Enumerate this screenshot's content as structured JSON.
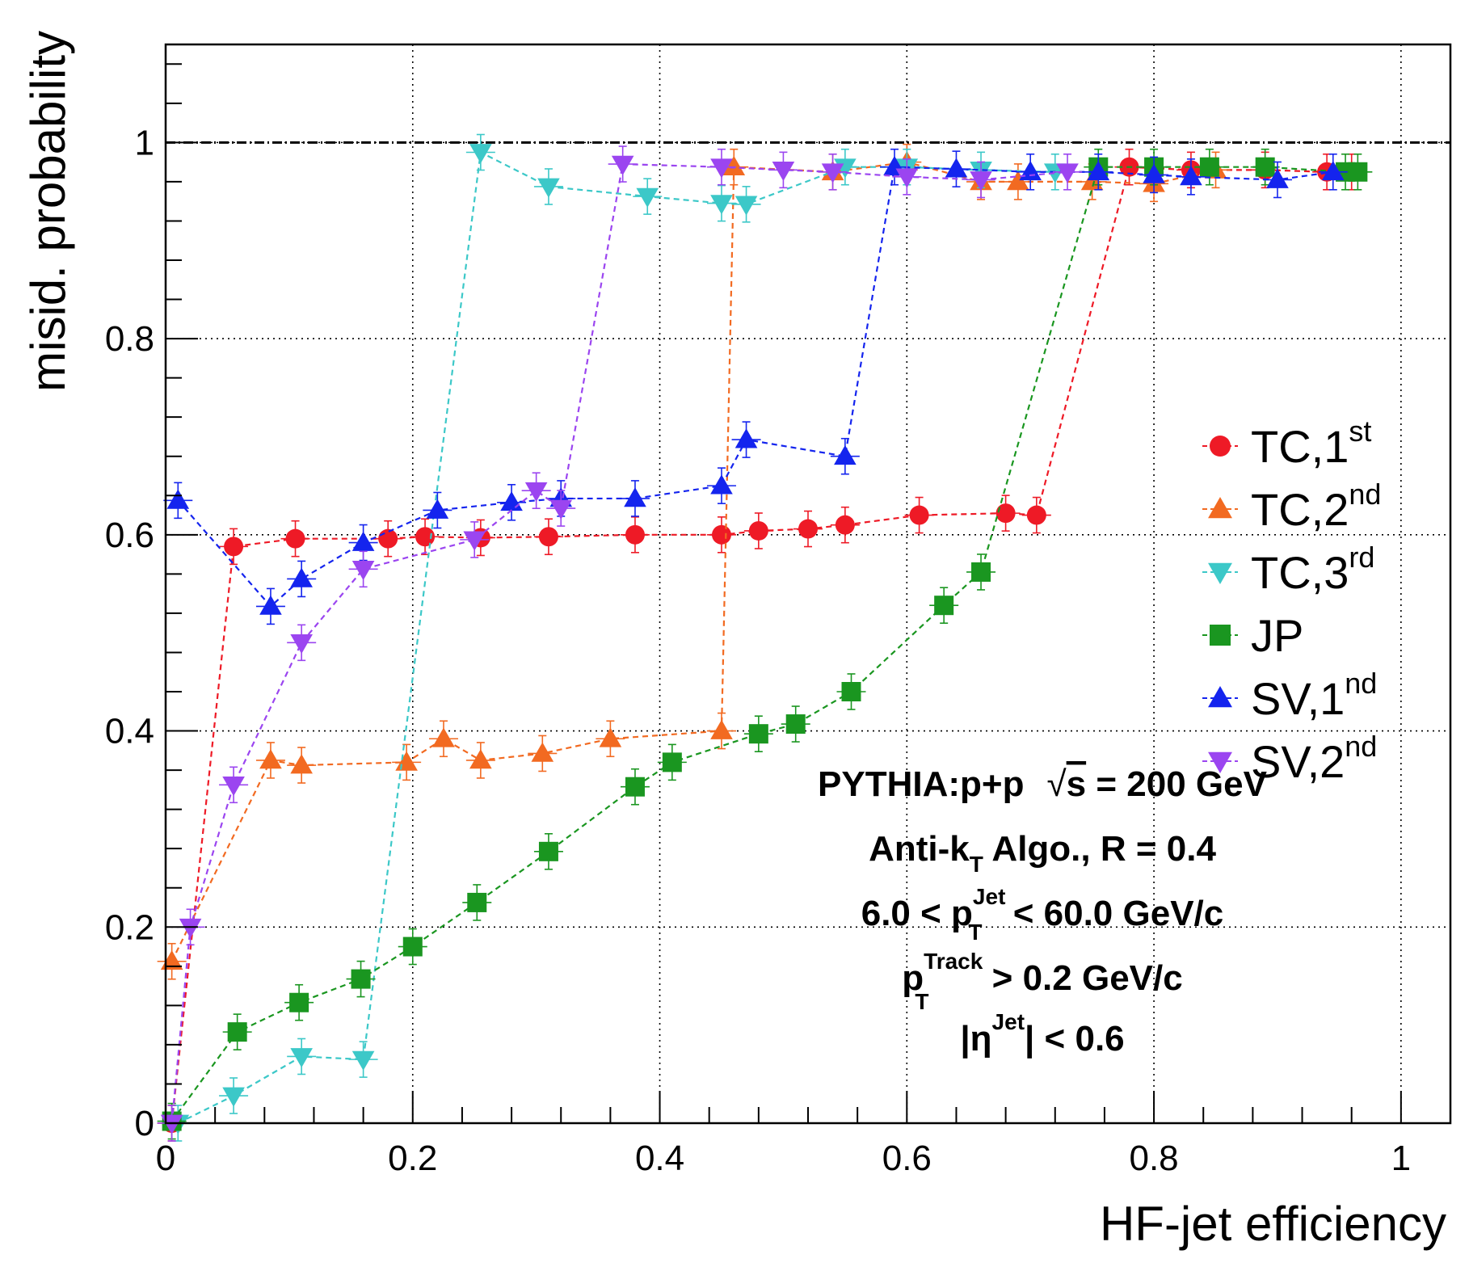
{
  "chart_data": {
    "type": "scatter",
    "xlabel": "HF-jet efficiency",
    "ylabel": "misid. probability",
    "xlim": [
      0,
      1.04
    ],
    "ylim": [
      0,
      1.1
    ],
    "grid": true,
    "xticks": [
      {
        "v": 0,
        "t": "0"
      },
      {
        "v": 0.2,
        "t": "0.2"
      },
      {
        "v": 0.4,
        "t": "0.4"
      },
      {
        "v": 0.6,
        "t": "0.6"
      },
      {
        "v": 0.8,
        "t": "0.8"
      },
      {
        "v": 1,
        "t": "1"
      }
    ],
    "yticks": [
      {
        "v": 0,
        "t": "0"
      },
      {
        "v": 0.2,
        "t": "0.2"
      },
      {
        "v": 0.4,
        "t": "0.4"
      },
      {
        "v": 0.6,
        "t": "0.6"
      },
      {
        "v": 0.8,
        "t": "0.8"
      },
      {
        "v": 1,
        "t": "1"
      }
    ],
    "reference_line_y": 1,
    "legend_position": "right",
    "series": [
      {
        "name": "TC,1",
        "sup": "st",
        "color": "#ee1a26",
        "marker": "circle",
        "x": [
          0.005,
          0.055,
          0.105,
          0.18,
          0.21,
          0.255,
          0.31,
          0.38,
          0.45,
          0.48,
          0.52,
          0.55,
          0.61,
          0.68,
          0.705,
          0.78,
          0.83,
          0.89,
          0.94,
          0.96
        ],
        "y": [
          0.0,
          0.588,
          0.596,
          0.596,
          0.598,
          0.597,
          0.598,
          0.6,
          0.6,
          0.604,
          0.606,
          0.61,
          0.62,
          0.622,
          0.62,
          0.975,
          0.972,
          0.972,
          0.97,
          0.97
        ]
      },
      {
        "name": "TC,2",
        "sup": "nd",
        "color": "#f26a21",
        "marker": "triangle-up",
        "x": [
          0.005,
          0.085,
          0.11,
          0.195,
          0.225,
          0.255,
          0.305,
          0.36,
          0.45,
          0.46,
          0.54,
          0.6,
          0.66,
          0.69,
          0.75,
          0.8,
          0.85
        ],
        "y": [
          0.165,
          0.37,
          0.365,
          0.368,
          0.392,
          0.37,
          0.377,
          0.392,
          0.4,
          0.975,
          0.97,
          0.98,
          0.96,
          0.96,
          0.96,
          0.958,
          0.972
        ]
      },
      {
        "name": "TC,3",
        "sup": "rd",
        "color": "#3cc8c8",
        "marker": "triangle-down",
        "x": [
          0.01,
          0.055,
          0.11,
          0.16,
          0.255,
          0.31,
          0.39,
          0.45,
          0.47,
          0.55,
          0.6,
          0.66,
          0.72
        ],
        "y": [
          0.0,
          0.028,
          0.068,
          0.065,
          0.99,
          0.955,
          0.945,
          0.938,
          0.937,
          0.975,
          0.975,
          0.972,
          0.97
        ]
      },
      {
        "name": "JP",
        "sup": "",
        "color": "#1a9620",
        "marker": "square",
        "x": [
          0.005,
          0.058,
          0.108,
          0.158,
          0.2,
          0.252,
          0.31,
          0.38,
          0.41,
          0.48,
          0.51,
          0.555,
          0.63,
          0.66,
          0.755,
          0.8,
          0.845,
          0.89,
          0.955,
          0.965
        ],
        "y": [
          0.002,
          0.093,
          0.123,
          0.147,
          0.18,
          0.225,
          0.277,
          0.343,
          0.368,
          0.397,
          0.407,
          0.44,
          0.528,
          0.562,
          0.975,
          0.975,
          0.975,
          0.975,
          0.97,
          0.97
        ]
      },
      {
        "name": "SV,1",
        "sup": "nd",
        "color": "#1424ee",
        "marker": "triangle-up",
        "x": [
          0.01,
          0.085,
          0.11,
          0.16,
          0.22,
          0.28,
          0.32,
          0.38,
          0.45,
          0.47,
          0.55,
          0.59,
          0.64,
          0.7,
          0.755,
          0.8,
          0.83,
          0.9,
          0.945
        ],
        "y": [
          0.635,
          0.527,
          0.555,
          0.592,
          0.625,
          0.633,
          0.637,
          0.637,
          0.65,
          0.697,
          0.68,
          0.975,
          0.973,
          0.97,
          0.97,
          0.967,
          0.965,
          0.962,
          0.97
        ]
      },
      {
        "name": "SV,2",
        "sup": "nd",
        "color": "#9b45f0",
        "marker": "triangle-down",
        "x": [
          0.005,
          0.02,
          0.055,
          0.11,
          0.16,
          0.25,
          0.3,
          0.32,
          0.37,
          0.45,
          0.5,
          0.54,
          0.6,
          0.66,
          0.73
        ],
        "y": [
          0.0,
          0.2,
          0.345,
          0.49,
          0.565,
          0.595,
          0.645,
          0.627,
          0.978,
          0.975,
          0.972,
          0.97,
          0.965,
          0.962,
          0.97
        ]
      }
    ]
  },
  "annotations": {
    "line1": "PYTHIA:p+p",
    "line1_sqrt": "√",
    "line1_s": "s",
    "line1_rest": " = 200 GeV",
    "line2_a": "Anti-k",
    "line2_sub": "T",
    "line2_b": " Algo., R = 0.4",
    "line3_a": "6.0 < p",
    "line3_sup": "Jet",
    "line3_sub": "T",
    "line3_b": " < 60.0 GeV/c",
    "line4_a": "p",
    "line4_sup": "Track",
    "line4_sub": "T",
    "line4_b": " > 0.2 GeV/c",
    "line5_a": "|η",
    "line5_sup": "Jet",
    "line5_b": "| < 0.6"
  }
}
